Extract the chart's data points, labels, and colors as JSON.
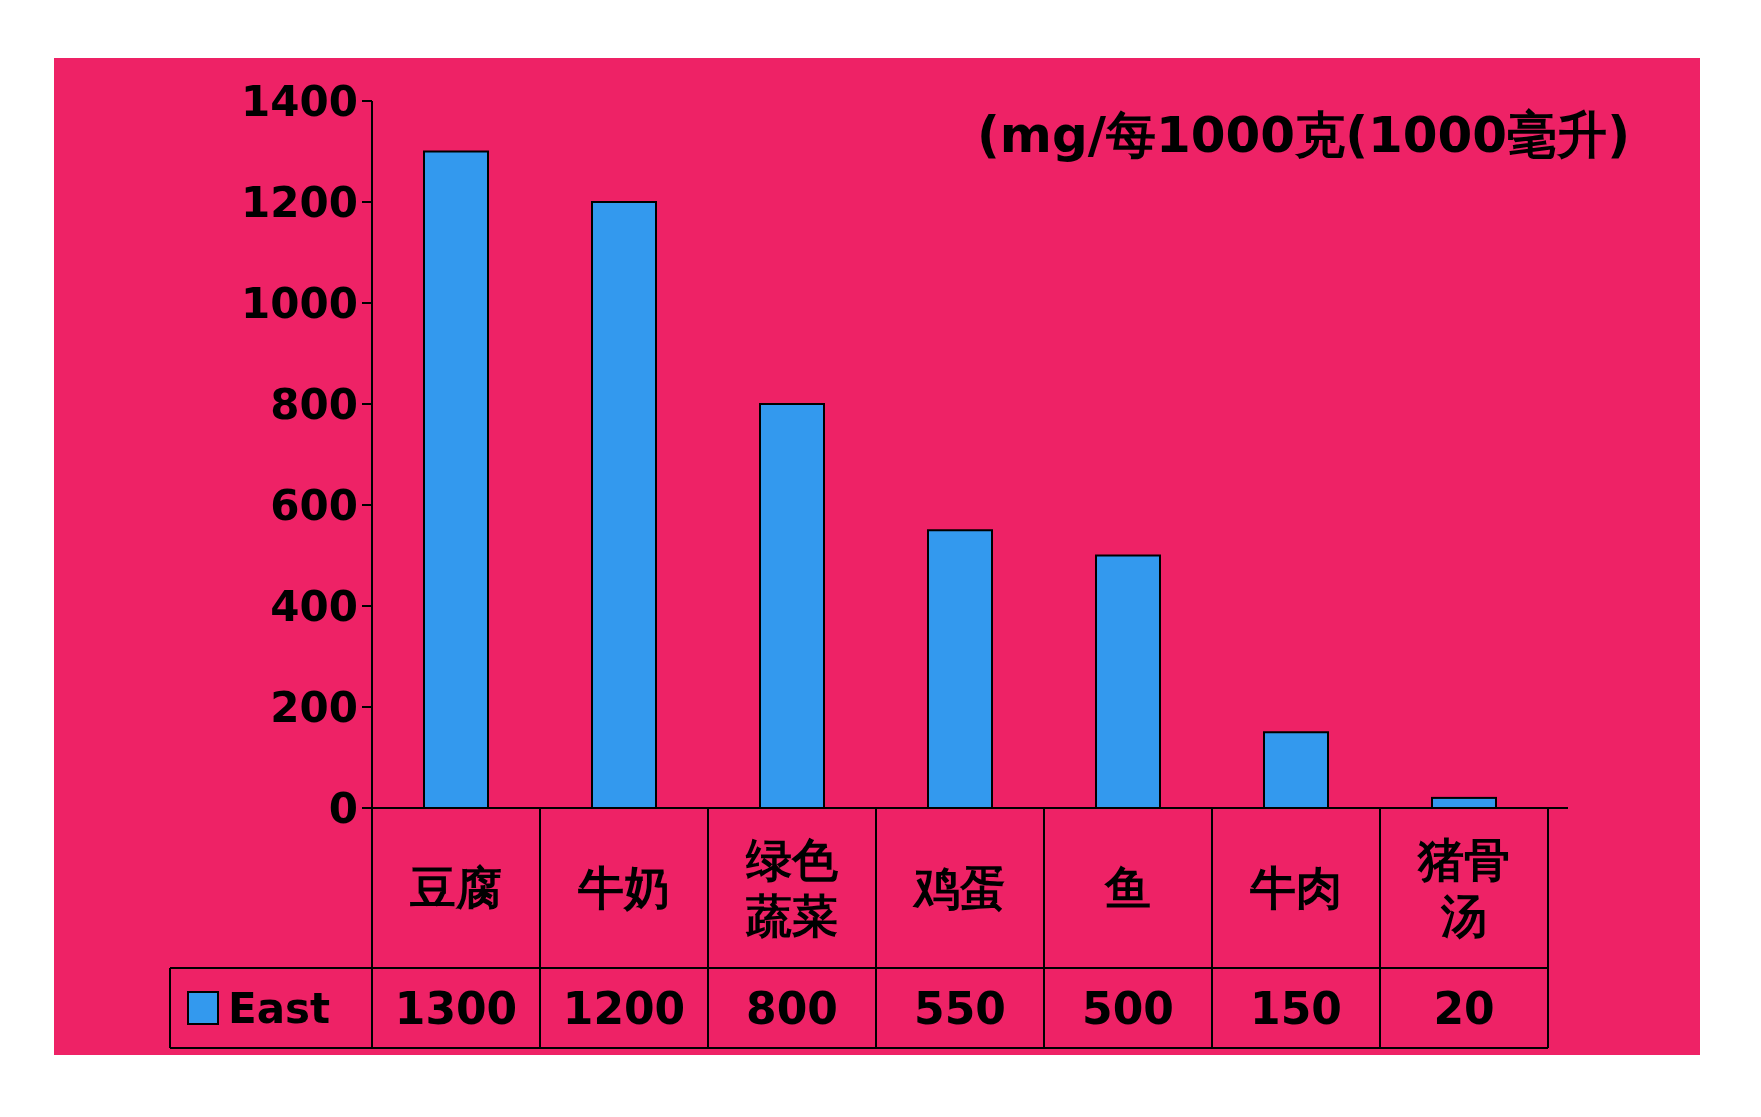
{
  "chart_data": {
    "type": "bar",
    "annotations": [
      "(mg/每1000克(1000毫升)"
    ],
    "categories": [
      "豆腐",
      "牛奶",
      "绿色蔬菜",
      "鸡蛋",
      "鱼",
      "牛肉",
      "猪骨汤"
    ],
    "series": [
      {
        "name": "East",
        "color": "#3399ee",
        "values": [
          1300,
          1200,
          800,
          550,
          500,
          150,
          20
        ]
      }
    ],
    "ylim": [
      0,
      1400
    ],
    "yticks": [
      0,
      200,
      400,
      600,
      800,
      1000,
      1200,
      1400
    ],
    "data_labels": true,
    "legend": "bottom",
    "grid": false
  }
}
